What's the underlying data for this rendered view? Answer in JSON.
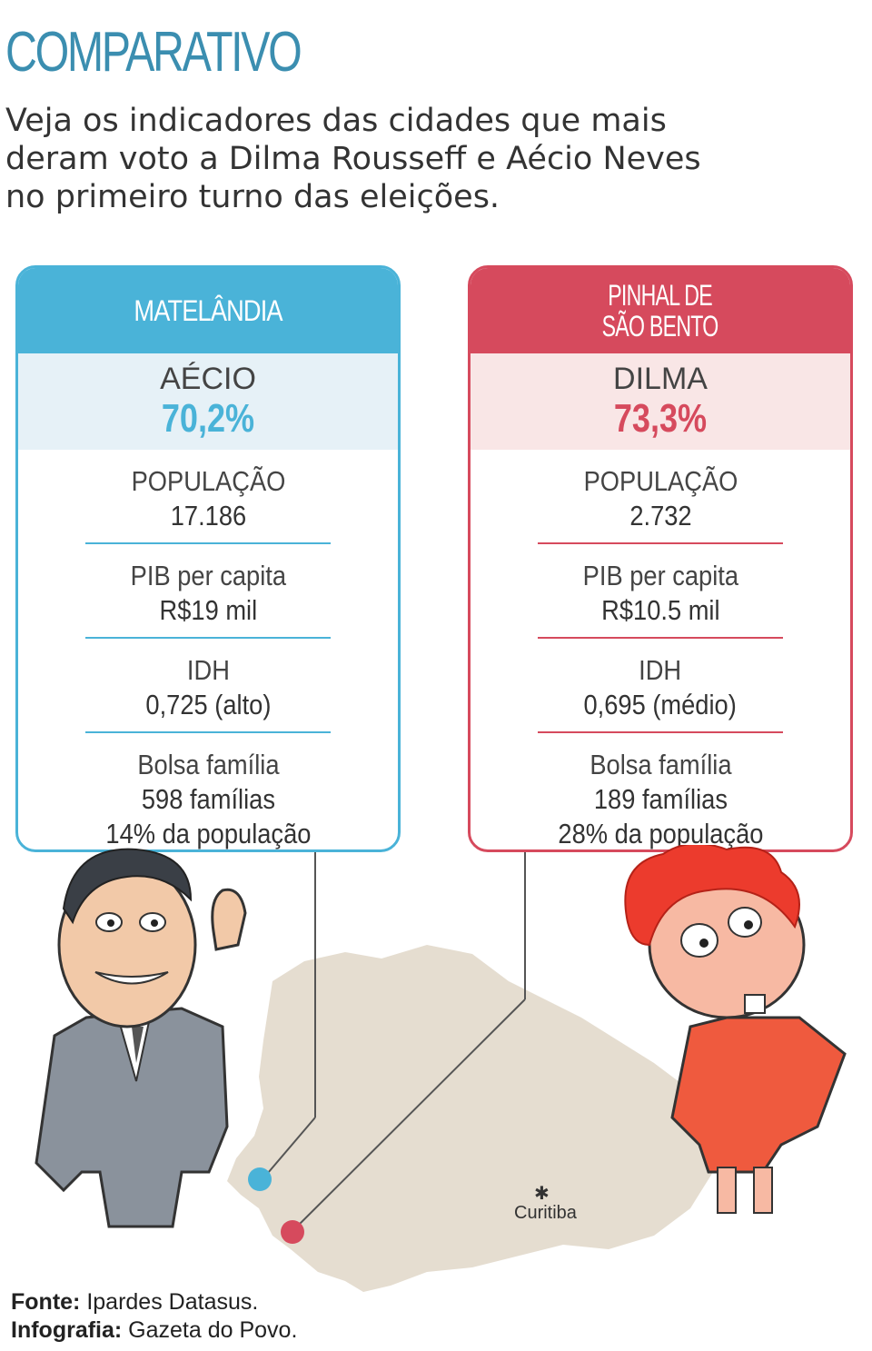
{
  "title": "COMPARATIVO",
  "intro": "Veja os indicadores das cidades que mais deram voto a Dilma Rousseff e Aécio Neves no primeiro turno das eleições.",
  "cities": [
    {
      "name": "MATELÂNDIA",
      "candidate": "AÉCIO",
      "percent": "70,2%",
      "color": "#4ab3d8",
      "population_label": "POPULAÇÃO",
      "population": "17.186",
      "pib_label": "PIB per capita",
      "pib": "R$19 mil",
      "idh_label": "IDH",
      "idh": "0,725 (alto)",
      "bolsa_label": "Bolsa família",
      "bolsa_families": "598 famílias",
      "bolsa_share": "14% da população"
    },
    {
      "name_line1": "PINHAL DE",
      "name_line2": "SÃO BENTO",
      "candidate": "DILMA",
      "percent": "73,3%",
      "color": "#d64a5d",
      "population_label": "POPULAÇÃO",
      "population": "2.732",
      "pib_label": "PIB per capita",
      "pib": "R$10.5 mil",
      "idh_label": "IDH",
      "idh": "0,695 (médio)",
      "bolsa_label": "Bolsa família",
      "bolsa_families": "189 famílias",
      "bolsa_share": "28% da população"
    }
  ],
  "map": {
    "capital_label": "Curitiba",
    "fill_color": "#e5ddd0"
  },
  "source": {
    "fonte_label": "Fonte:",
    "fonte": "Ipardes Datasus.",
    "infografia_label": "Infografia:",
    "infografia": "Gazeta do Povo."
  }
}
